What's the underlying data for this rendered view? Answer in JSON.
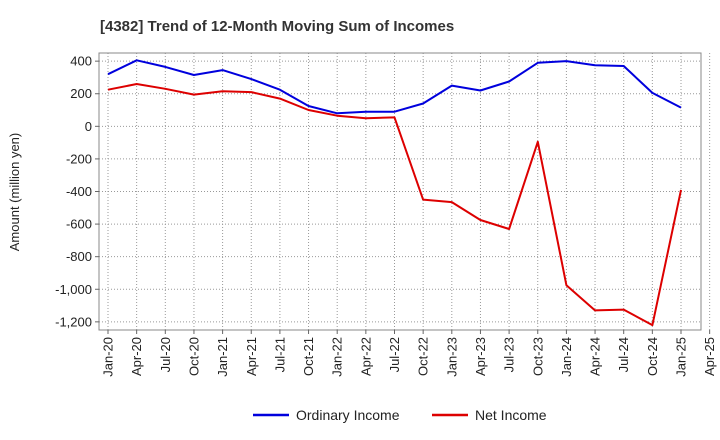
{
  "chart_data": {
    "type": "line",
    "title": "[4382]  Trend of 12-Month Moving Sum of Incomes",
    "xlabel": "",
    "ylabel": "Amount (million yen)",
    "ylim": [
      -1250,
      450
    ],
    "yticks": [
      400,
      200,
      0,
      -200,
      -400,
      -600,
      -800,
      -1000,
      -1200
    ],
    "ytick_labels": [
      "400",
      "200",
      "0",
      "-200",
      "-400",
      "-600",
      "-800",
      "-1,000",
      "-1,200"
    ],
    "categories": [
      "Jan-20",
      "Apr-20",
      "Jul-20",
      "Oct-20",
      "Jan-21",
      "Apr-21",
      "Jul-21",
      "Oct-21",
      "Jan-22",
      "Apr-22",
      "Jul-22",
      "Oct-22",
      "Jan-23",
      "Apr-23",
      "Jul-23",
      "Oct-23",
      "Jan-24",
      "Apr-24",
      "Jul-24",
      "Oct-24",
      "Jan-25",
      "Apr-25"
    ],
    "grid": true,
    "legend": "bottom-center",
    "series": [
      {
        "name": "Ordinary Income",
        "color": "#0000dd",
        "values": [
          320,
          405,
          365,
          315,
          345,
          290,
          225,
          125,
          80,
          90,
          90,
          140,
          250,
          220,
          275,
          390,
          400,
          375,
          370,
          205,
          115,
          null
        ]
      },
      {
        "name": "Net Income",
        "color": "#dd0000",
        "values": [
          225,
          260,
          230,
          195,
          215,
          210,
          170,
          100,
          65,
          50,
          55,
          -450,
          -465,
          -575,
          -630,
          -95,
          -975,
          -1130,
          -1125,
          -1220,
          -390,
          null
        ]
      }
    ]
  }
}
